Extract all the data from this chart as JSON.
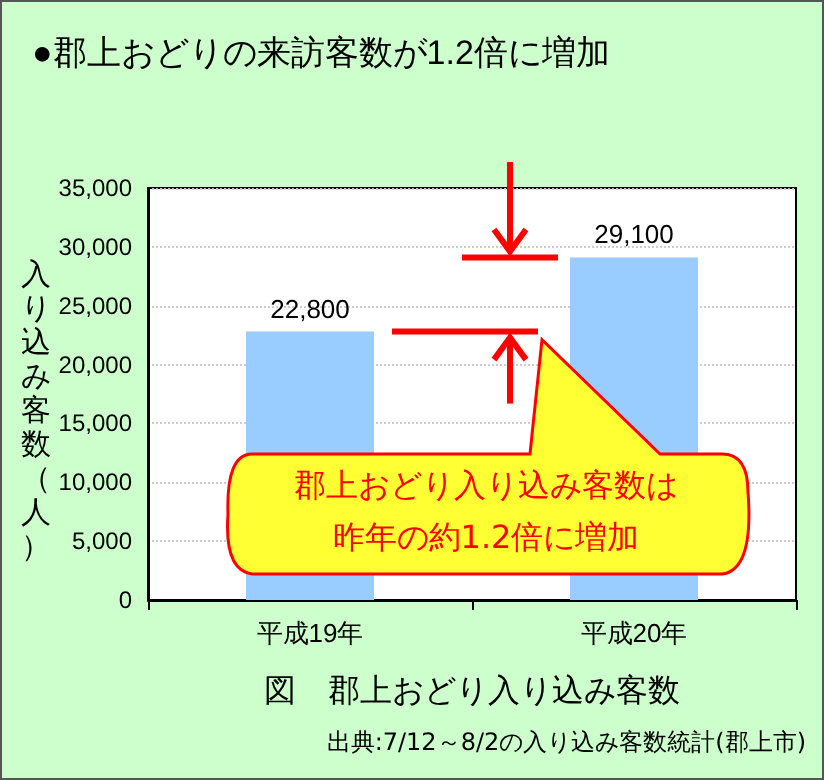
{
  "chart_data": {
    "type": "bar",
    "title": "●郡上おどりの来訪客数が1.2倍に増加",
    "xlabel": "図　郡上おどり入り込み客数",
    "ylabel": "入り込み客数（人）",
    "categories": [
      "平成19年",
      "平成20年"
    ],
    "values": [
      22800,
      29100
    ],
    "value_labels": [
      "22,800",
      "29,100"
    ],
    "color": "#99ccff",
    "ylim": [
      0,
      35000
    ],
    "yticks": [
      0,
      {
        "value": 5000,
        "label": "5,000"
      },
      {
        "value": 10000,
        "label": "10,000"
      },
      {
        "value": 15000,
        "label": "15,000"
      },
      {
        "value": 20000,
        "label": "20,000"
      },
      {
        "value": 25000,
        "label": "25,000"
      },
      {
        "value": 30000,
        "label": "30,000"
      },
      {
        "value": 35000,
        "label": "35,000"
      }
    ],
    "grid": "y",
    "annotations": [
      "郡上おどり入り込み客数は昨年の約1.2倍に増加",
      "出典:7/12～8/2の入り込み客数統計(郡上市)"
    ]
  }
}
